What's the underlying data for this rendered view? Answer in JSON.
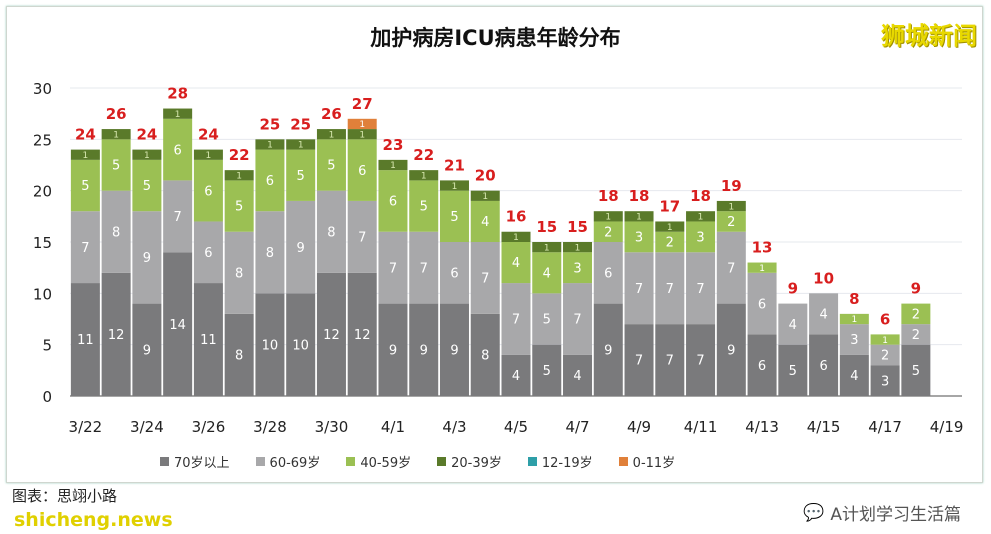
{
  "brand": "狮城新闻",
  "credit": "图表：思翊小路",
  "site": "shicheng.news",
  "wechat_account": "A计划学习生活篇",
  "chart_data": {
    "type": "bar",
    "stacked": true,
    "title": "加护病房ICU病患年龄分布",
    "ylim": [
      0,
      30
    ],
    "yticks": [
      0,
      5,
      10,
      15,
      20,
      25,
      30
    ],
    "grid": true,
    "legend_position": "bottom",
    "x_tick_labels": [
      "3/22",
      "3/24",
      "3/26",
      "3/28",
      "3/30",
      "4/1",
      "4/3",
      "4/5",
      "4/7",
      "4/9",
      "4/11",
      "4/13",
      "4/15",
      "4/17",
      "4/19"
    ],
    "categories": [
      "3/22",
      "3/23",
      "3/24",
      "3/25",
      "3/26",
      "3/27",
      "3/28",
      "3/29",
      "3/30",
      "3/31",
      "4/1",
      "4/2",
      "4/3",
      "4/4",
      "4/5",
      "4/6",
      "4/7",
      "4/8",
      "4/9",
      "4/10",
      "4/11",
      "4/12",
      "4/13",
      "4/14",
      "4/15",
      "4/16",
      "4/17",
      "4/18"
    ],
    "totals": [
      24,
      26,
      24,
      28,
      24,
      22,
      25,
      25,
      26,
      27,
      23,
      22,
      21,
      20,
      16,
      15,
      15,
      18,
      18,
      17,
      18,
      19,
      13,
      9,
      10,
      8,
      6,
      9
    ],
    "series": [
      {
        "name": "70岁以上",
        "color": "#7a7a7c",
        "values": [
          11,
          12,
          9,
          14,
          11,
          8,
          10,
          10,
          12,
          12,
          9,
          9,
          9,
          8,
          4,
          5,
          4,
          9,
          7,
          7,
          7,
          9,
          6,
          5,
          6,
          4,
          3,
          5
        ]
      },
      {
        "name": "60-69岁",
        "color": "#a8a8aa",
        "values": [
          7,
          8,
          9,
          7,
          6,
          8,
          8,
          9,
          8,
          7,
          7,
          7,
          6,
          7,
          7,
          5,
          7,
          6,
          7,
          7,
          7,
          7,
          6,
          4,
          4,
          3,
          2,
          2
        ]
      },
      {
        "name": "40-59岁",
        "color": "#9bc053",
        "values": [
          5,
          5,
          5,
          6,
          6,
          5,
          6,
          5,
          5,
          6,
          6,
          5,
          5,
          4,
          4,
          4,
          3,
          2,
          3,
          2,
          3,
          2,
          1,
          0,
          0,
          1,
          1,
          2
        ]
      },
      {
        "name": "20-39岁",
        "color": "#5a7a2a",
        "values": [
          1,
          1,
          1,
          1,
          1,
          1,
          1,
          1,
          1,
          1,
          1,
          1,
          1,
          1,
          1,
          1,
          1,
          1,
          1,
          1,
          1,
          1,
          0,
          0,
          0,
          0,
          0,
          0
        ]
      },
      {
        "name": "12-19岁",
        "color": "#2e9fa8",
        "values": [
          0,
          0,
          0,
          0,
          0,
          0,
          0,
          0,
          0,
          0,
          0,
          0,
          0,
          0,
          0,
          0,
          0,
          0,
          0,
          0,
          0,
          0,
          0,
          0,
          0,
          0,
          0,
          0
        ]
      },
      {
        "name": "0-11岁",
        "color": "#e0803a",
        "values": [
          0,
          0,
          0,
          0,
          0,
          0,
          0,
          0,
          0,
          1,
          0,
          0,
          0,
          0,
          0,
          0,
          0,
          0,
          0,
          0,
          0,
          0,
          0,
          0,
          0,
          0,
          0,
          0
        ]
      }
    ],
    "total_label_color": "#d81e1e"
  }
}
